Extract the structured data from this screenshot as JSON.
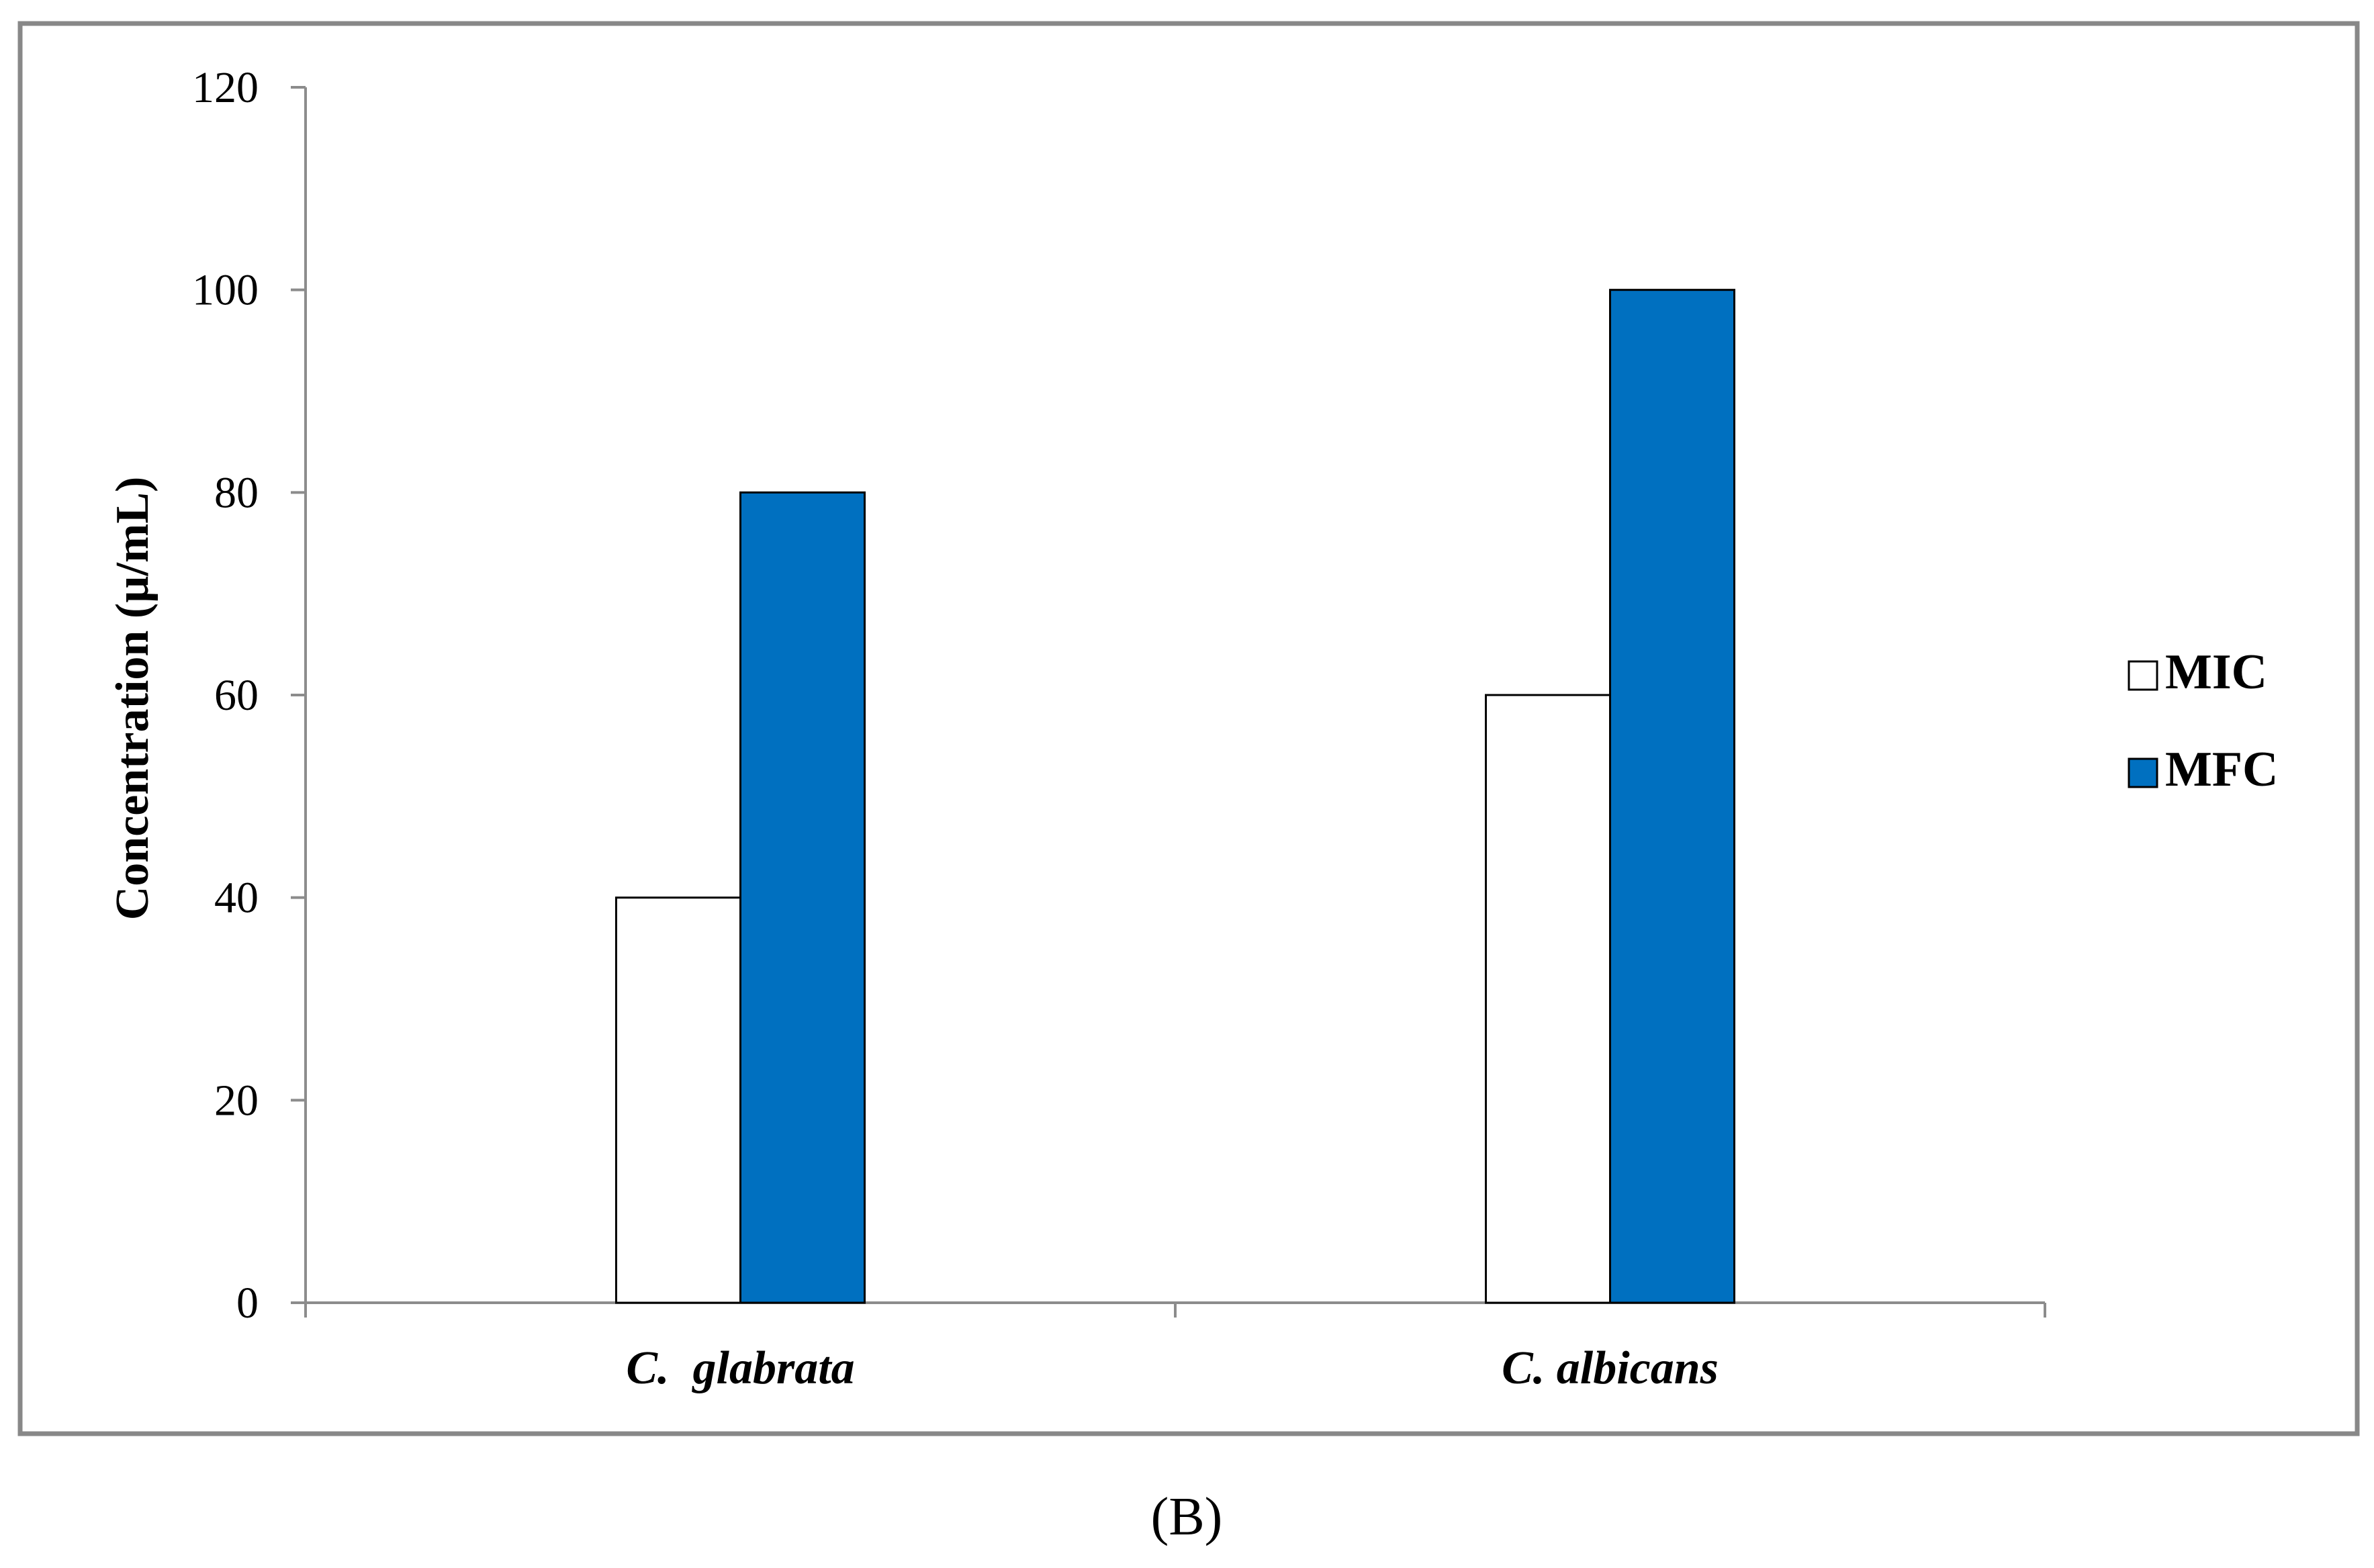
{
  "chart_data": {
    "type": "bar",
    "categories": [
      "C.  glabrata",
      "C. albicans"
    ],
    "series": [
      {
        "name": "MIC",
        "values": [
          40,
          60
        ],
        "color": "#ffffff"
      },
      {
        "name": "MFC",
        "values": [
          80,
          100
        ],
        "color": "#0070c0"
      }
    ],
    "ylabel": "Concentration (µ/mL)",
    "ylim": [
      0,
      120
    ],
    "yticks": [
      0,
      20,
      40,
      60,
      80,
      100,
      120
    ],
    "grid": false,
    "legend_position": "right"
  },
  "caption": "(B)"
}
